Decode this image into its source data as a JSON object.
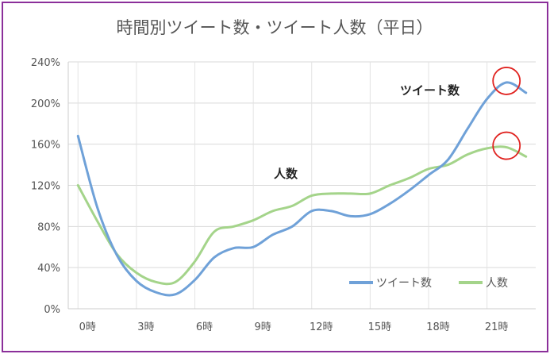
{
  "chart_data": {
    "type": "line",
    "title": "時間別ツイート数・ツイート人数（平日）",
    "xlabel": "",
    "ylabel": "",
    "x_tick_labels": [
      "0時",
      "3時",
      "6時",
      "9時",
      "12時",
      "15時",
      "18時",
      "21時"
    ],
    "y_tick_labels": [
      "0%",
      "40%",
      "80%",
      "120%",
      "160%",
      "200%",
      "240%"
    ],
    "ylim": [
      0,
      240
    ],
    "xlim": [
      -0.5,
      23.5
    ],
    "grid": true,
    "legend_position": "bottom-right",
    "x": [
      0,
      1,
      2,
      3,
      4,
      5,
      6,
      7,
      8,
      9,
      10,
      11,
      12,
      13,
      14,
      15,
      16,
      17,
      18,
      19,
      20,
      21,
      22,
      23
    ],
    "series": [
      {
        "name": "ツイート数",
        "color": "#6fa1d8",
        "values": [
          168,
          98,
          52,
          27,
          16,
          14,
          28,
          50,
          59,
          60,
          72,
          80,
          95,
          95,
          90,
          92,
          102,
          115,
          130,
          145,
          175,
          204,
          220,
          210
        ]
      },
      {
        "name": "人数",
        "color": "#a4d48a",
        "values": [
          120,
          85,
          53,
          35,
          26,
          26,
          46,
          75,
          80,
          86,
          95,
          100,
          110,
          112,
          112,
          112,
          120,
          127,
          136,
          140,
          150,
          156,
          157,
          148
        ]
      }
    ],
    "annotations": [
      {
        "text": "ツイート数"
      },
      {
        "text": "人数"
      }
    ],
    "highlights": {
      "color": "#e0221f",
      "markers": [
        {
          "series": 0,
          "x": 22
        },
        {
          "series": 1,
          "x": 22
        }
      ]
    }
  }
}
